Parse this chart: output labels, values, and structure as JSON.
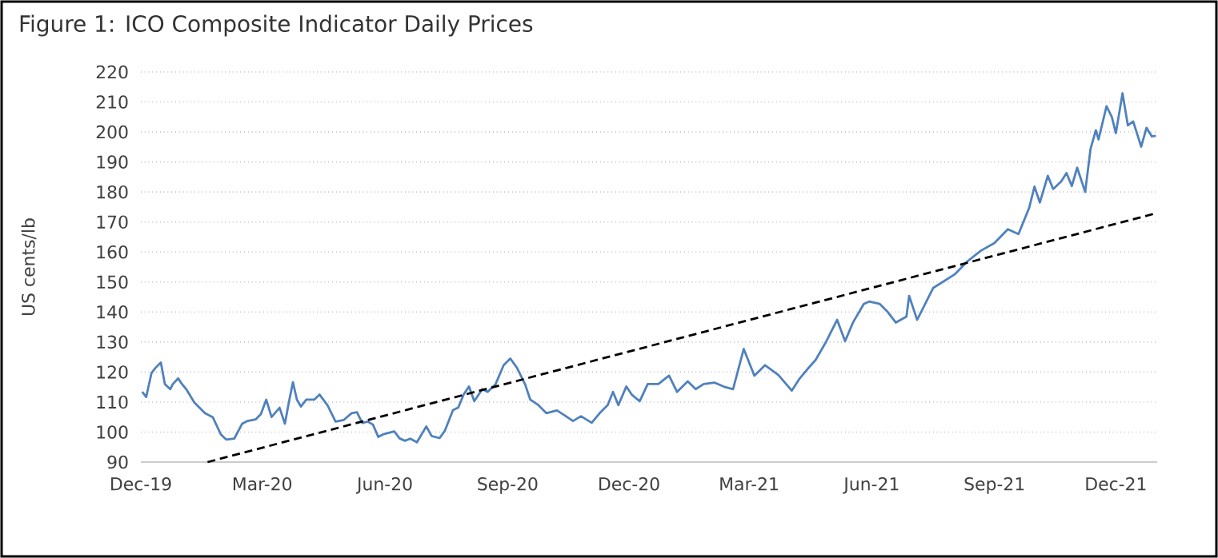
{
  "chart_data": {
    "type": "line",
    "title": "Figure 1: ICO Composite Indicator Daily Prices",
    "ylabel": "US cents/lb",
    "xlim": [
      "2019-12-01",
      "2022-01-01"
    ],
    "xticks": [
      {
        "value": "2019-12-01",
        "label": "Dec-19"
      },
      {
        "value": "2020-03-01",
        "label": "Mar-20"
      },
      {
        "value": "2020-06-01",
        "label": "Jun-20"
      },
      {
        "value": "2020-09-01",
        "label": "Sep-20"
      },
      {
        "value": "2020-12-01",
        "label": "Dec-20"
      },
      {
        "value": "2021-03-01",
        "label": "Mar-21"
      },
      {
        "value": "2021-06-01",
        "label": "Jun-21"
      },
      {
        "value": "2021-09-01",
        "label": "Sep-21"
      },
      {
        "value": "2021-12-01",
        "label": "Dec-21"
      }
    ],
    "ylim": [
      90,
      220
    ],
    "yticks": [
      90,
      100,
      110,
      120,
      130,
      140,
      150,
      160,
      170,
      180,
      190,
      200,
      210,
      220
    ],
    "grid": "y",
    "series": [
      {
        "color": "#4f81bd",
        "line_style": "solid",
        "x": [
          "2019-12-02",
          "2019-12-05",
          "2019-12-09",
          "2019-12-12",
          "2019-12-16",
          "2019-12-19",
          "2019-12-23",
          "2019-12-25",
          "2019-12-29",
          "2019-12-31",
          "2020-01-04",
          "2020-01-10",
          "2020-01-18",
          "2020-01-24",
          "2020-01-30",
          "2020-02-03",
          "2020-02-09",
          "2020-02-15",
          "2020-02-19",
          "2020-02-25",
          "2020-02-29",
          "2020-03-04",
          "2020-03-08",
          "2020-03-14",
          "2020-03-18",
          "2020-03-21",
          "2020-03-24",
          "2020-03-27",
          "2020-03-30",
          "2020-04-03",
          "2020-04-09",
          "2020-04-13",
          "2020-04-19",
          "2020-04-25",
          "2020-05-01",
          "2020-05-07",
          "2020-05-11",
          "2020-05-15",
          "2020-05-19",
          "2020-05-23",
          "2020-05-27",
          "2020-05-31",
          "2020-06-08",
          "2020-06-12",
          "2020-06-16",
          "2020-06-20",
          "2020-06-25",
          "2020-07-02",
          "2020-07-06",
          "2020-07-12",
          "2020-07-16",
          "2020-07-22",
          "2020-07-26",
          "2020-07-30",
          "2020-08-03",
          "2020-08-07",
          "2020-08-13",
          "2020-08-17",
          "2020-08-23",
          "2020-08-29",
          "2020-09-03",
          "2020-09-08",
          "2020-09-14",
          "2020-09-18",
          "2020-09-24",
          "2020-09-30",
          "2020-10-08",
          "2020-10-14",
          "2020-10-20",
          "2020-10-26",
          "2020-11-03",
          "2020-11-09",
          "2020-11-15",
          "2020-11-19",
          "2020-11-23",
          "2020-11-29",
          "2020-12-03",
          "2020-12-09",
          "2020-12-15",
          "2020-12-23",
          "2020-12-31",
          "2021-01-06",
          "2021-01-14",
          "2021-01-20",
          "2021-01-26",
          "2021-02-03",
          "2021-02-11",
          "2021-02-17",
          "2021-02-25",
          "2021-03-05",
          "2021-03-13",
          "2021-03-23",
          "2021-04-02",
          "2021-04-08",
          "2021-04-14",
          "2021-04-20",
          "2021-04-28",
          "2021-05-06",
          "2021-05-12",
          "2021-05-18",
          "2021-05-26",
          "2021-05-30",
          "2021-06-07",
          "2021-06-13",
          "2021-06-19",
          "2021-06-27",
          "2021-06-29",
          "2021-07-05",
          "2021-07-17",
          "2021-08-02",
          "2021-08-12",
          "2021-08-22",
          "2021-09-01",
          "2021-09-11",
          "2021-09-19",
          "2021-09-27",
          "2021-10-01",
          "2021-10-05",
          "2021-10-11",
          "2021-10-15",
          "2021-10-21",
          "2021-10-25",
          "2021-10-29",
          "2021-11-02",
          "2021-11-08",
          "2021-11-12",
          "2021-11-16",
          "2021-11-18",
          "2021-11-24",
          "2021-11-28",
          "2021-12-01",
          "2021-12-06",
          "2021-12-10",
          "2021-12-14",
          "2021-12-20",
          "2021-12-24",
          "2021-12-28",
          "2021-12-31"
        ],
        "values": [
          113.4,
          111.7,
          119.7,
          121.4,
          123.2,
          116,
          114.3,
          116,
          117.9,
          116.5,
          114.3,
          109.9,
          106.3,
          104.9,
          99.2,
          97.5,
          97.8,
          102.8,
          103.7,
          104.2,
          106,
          110.8,
          105,
          108.1,
          102.8,
          110,
          116.6,
          110.8,
          108.5,
          110.8,
          110.8,
          112.5,
          108.9,
          103.5,
          104,
          106.3,
          106.6,
          103,
          103.5,
          102.5,
          98.4,
          99.3,
          100.2,
          97.9,
          97.1,
          97.8,
          96.6,
          101.9,
          98.7,
          98,
          100.5,
          107.3,
          108.2,
          112.5,
          115.2,
          110.3,
          114.3,
          113.4,
          116,
          122.3,
          124.5,
          121.4,
          116,
          110.8,
          109,
          106.3,
          107.2,
          105.5,
          103.7,
          105.3,
          103.1,
          106.3,
          109,
          113.4,
          109,
          115.2,
          112.5,
          110.3,
          116,
          116,
          118.8,
          113.4,
          116.9,
          114.3,
          116,
          116.5,
          115,
          114.3,
          127.7,
          118.8,
          122.3,
          119,
          113.8,
          117.9,
          121.1,
          124.1,
          130.3,
          137.4,
          130.3,
          136.6,
          142.7,
          143.5,
          142.7,
          140,
          136.5,
          138.5,
          145.4,
          137.4,
          148,
          152.5,
          157,
          160.5,
          163,
          167.6,
          166,
          174.7,
          181.8,
          176.5,
          185.4,
          181,
          183.5,
          186.3,
          182,
          188.1,
          180,
          194.3,
          200.6,
          197.5,
          208.6,
          205,
          199.6,
          212.9,
          202.2,
          203.5,
          195.1,
          201.4,
          198.5,
          198.7
        ]
      },
      {
        "color": "#000000",
        "line_style": "dashed",
        "x": [
          "2020-01-20",
          "2021-12-31"
        ],
        "values": [
          90,
          172.9
        ]
      }
    ]
  }
}
